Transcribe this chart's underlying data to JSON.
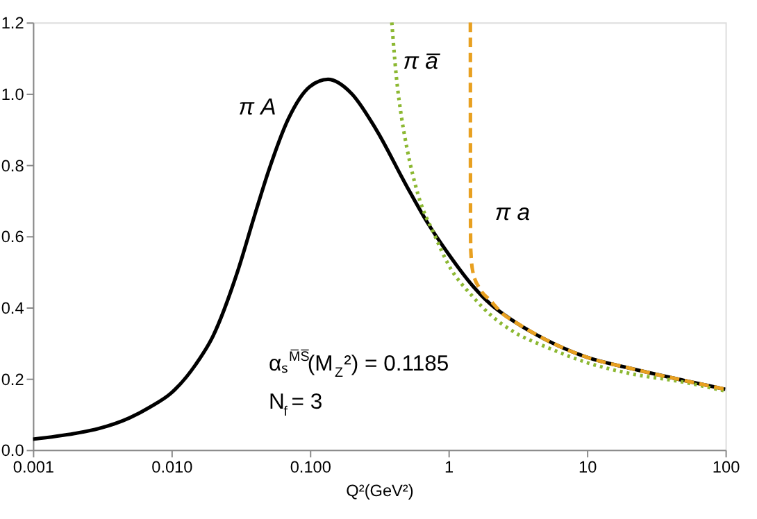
{
  "chart_data": {
    "type": "line",
    "xlabel": "Q²(GeV²)",
    "log": "x",
    "grid": false,
    "marker": "none",
    "xlim": [
      0.001,
      100
    ],
    "ylim": [
      0,
      1.2
    ],
    "xticks": [
      {
        "value": 0.001,
        "label": "0.001"
      },
      {
        "value": 0.01,
        "label": "0.010"
      },
      {
        "value": 0.1,
        "label": "0.100"
      },
      1,
      10,
      100
    ],
    "yticks": [
      {
        "value": 0,
        "label": "0.0"
      },
      0.2,
      0.4,
      0.6,
      0.8,
      {
        "value": 1,
        "label": "1.0"
      },
      1.2
    ],
    "series": [
      {
        "color": "#000000",
        "line_style": "solid",
        "x": [
          0.001,
          0.002,
          0.003,
          0.005,
          0.007,
          0.01,
          0.015,
          0.02,
          0.03,
          0.04,
          0.05,
          0.07,
          0.1,
          0.135,
          0.2,
          0.3,
          0.5,
          0.7,
          1,
          1.5,
          2,
          3,
          5,
          10,
          20,
          50,
          100
        ],
        "values": [
          0.03,
          0.046,
          0.06,
          0.09,
          0.12,
          0.16,
          0.24,
          0.32,
          0.5,
          0.66,
          0.78,
          0.93,
          1.02,
          1.04,
          1.0,
          0.9,
          0.74,
          0.64,
          0.55,
          0.46,
          0.41,
          0.36,
          0.31,
          0.26,
          0.23,
          0.195,
          0.17
        ]
      },
      {
        "color": "#8cb832",
        "line_style": "dotted",
        "x": [
          0.39,
          0.42,
          0.46,
          0.5,
          0.6,
          0.8,
          1,
          1.5,
          2,
          3,
          5,
          10,
          20,
          50,
          100
        ],
        "values": [
          1.2,
          1.05,
          0.93,
          0.85,
          0.72,
          0.6,
          0.52,
          0.43,
          0.38,
          0.33,
          0.29,
          0.245,
          0.215,
          0.19,
          0.165
        ]
      },
      {
        "color": "#e8a020",
        "line_style": "dashed",
        "x": [
          1.44,
          1.442,
          1.445,
          1.45,
          1.5,
          1.7,
          2,
          2.5,
          3,
          5,
          10,
          20,
          50,
          100
        ],
        "values": [
          1.2,
          0.8,
          0.6,
          0.56,
          0.5,
          0.45,
          0.42,
          0.38,
          0.36,
          0.31,
          0.26,
          0.23,
          0.195,
          0.17
        ]
      }
    ],
    "annotations": [
      "π A",
      "π a̅",
      "π a",
      "αₛ$^{M̅S̅}$(M$_{Z}$²) = 0.1185",
      "N$_{f}$ = 3"
    ]
  }
}
